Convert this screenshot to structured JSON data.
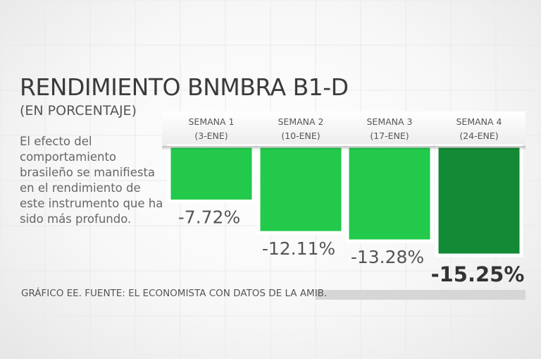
{
  "header": {
    "title": "RENDIMIENTO BNMBRA B1-D",
    "subtitle": "(EN PORCENTAJE)"
  },
  "description": "El efecto del comportamiento brasileño se manifiesta en el rendimiento de este instrumento que ha sido más profundo.",
  "footer": "GRÁFICO EE. FUENTE: EL ECONOMISTA CON DATOS DE LA AMIB.",
  "colors": {
    "bar": "#22c94b",
    "bar_highlight": "#138a35"
  },
  "chart_data": {
    "type": "bar",
    "categories": [
      {
        "line1": "SEMANA 1",
        "line2": "(3-ENE)"
      },
      {
        "line1": "SEMANA 2",
        "line2": "(10-ENE)"
      },
      {
        "line1": "SEMANA 3",
        "line2": "(17-ENE)"
      },
      {
        "line1": "SEMANA 4",
        "line2": "(24-ENE)"
      }
    ],
    "values": [
      -7.72,
      -12.11,
      -13.28,
      -15.25
    ],
    "labels": [
      "-7.72%",
      "-12.11%",
      "-13.28%",
      "-15.25%"
    ],
    "highlight_index": 3,
    "ylim": [
      -15.25,
      0
    ],
    "xlabel": "",
    "ylabel": ""
  }
}
